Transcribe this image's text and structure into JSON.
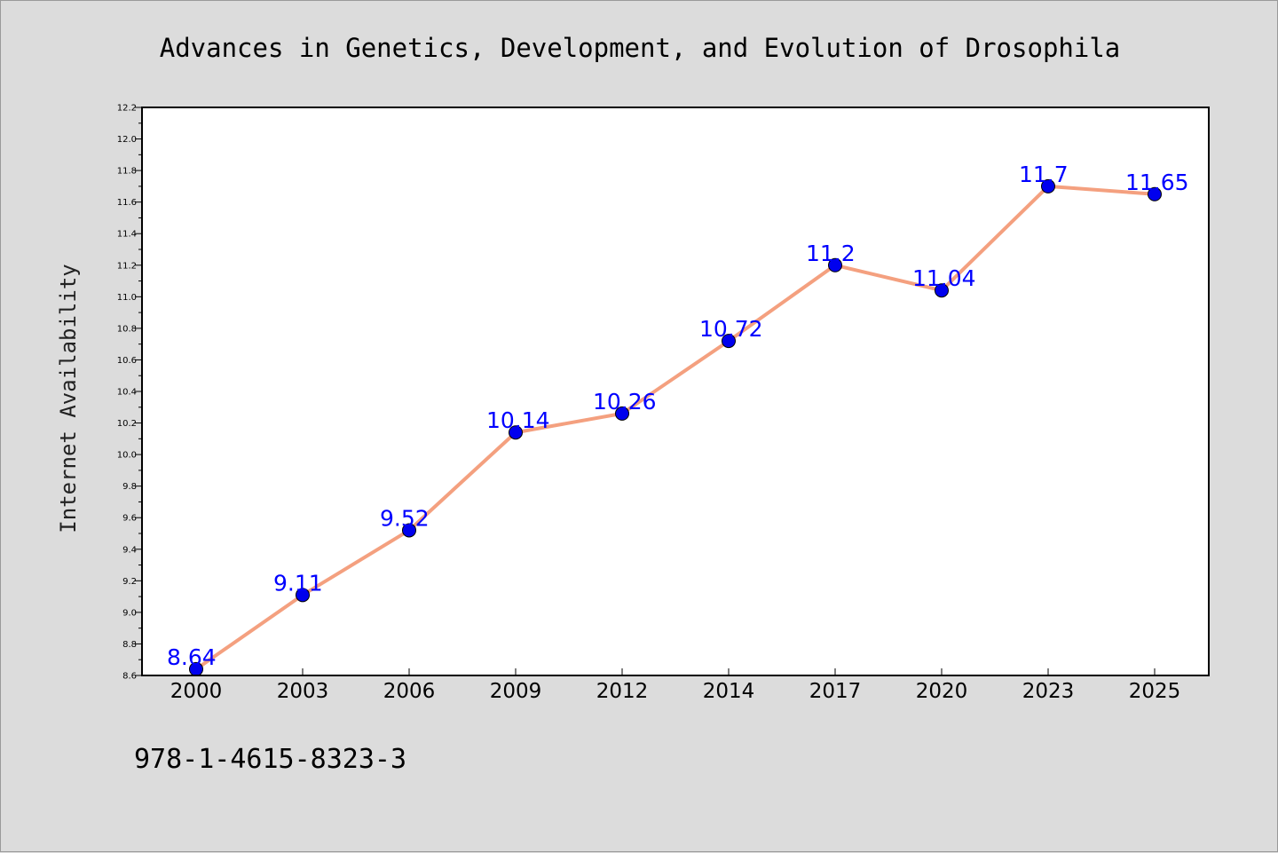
{
  "chart_data": {
    "type": "line",
    "title": "Advances in Genetics, Development, and Evolution of Drosophila",
    "xlabel": "",
    "ylabel": "Internet Availability",
    "categories": [
      "2000",
      "2003",
      "2006",
      "2009",
      "2012",
      "2014",
      "2017",
      "2020",
      "2023",
      "2025"
    ],
    "values": [
      8.64,
      9.11,
      9.52,
      10.14,
      10.26,
      10.72,
      11.2,
      11.04,
      11.7,
      11.65
    ],
    "data_labels": [
      "8.64",
      "9.11",
      "9.52",
      "10.14",
      "10.26",
      "10.72",
      "11.2",
      "11.04",
      "11.7",
      "11.65"
    ],
    "ylim": [
      8.6,
      12.2
    ],
    "yticks": [
      "8.6",
      "8.8",
      "9.0",
      "9.2",
      "9.4",
      "9.6",
      "9.8",
      "10.0",
      "10.2",
      "10.4",
      "10.6",
      "10.8",
      "11.0",
      "11.2",
      "11.4",
      "11.6",
      "11.8",
      "12.0",
      "12.2"
    ],
    "grid": false,
    "line_color": "#f4a07f",
    "marker_color": "#0000ee",
    "label_color": "#0000ff"
  },
  "footer": {
    "isbn": "978-1-4615-8323-3"
  }
}
